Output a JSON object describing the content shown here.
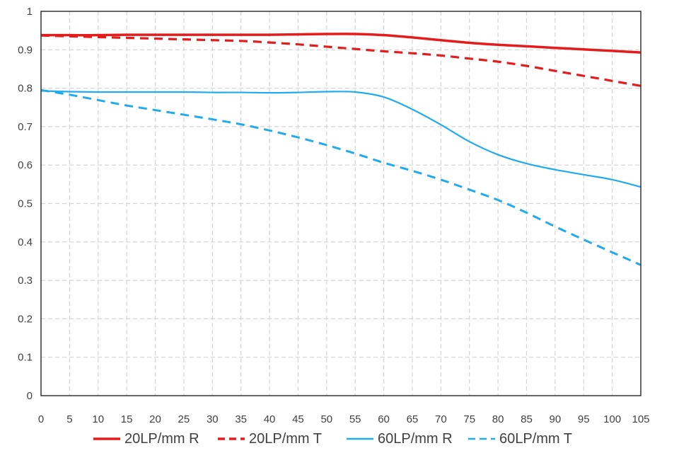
{
  "chart_data": {
    "type": "line",
    "title": "",
    "xlabel": "",
    "ylabel": "",
    "xlim": [
      0,
      105
    ],
    "ylim": [
      0,
      1
    ],
    "x_ticks": [
      0,
      5,
      10,
      15,
      20,
      25,
      30,
      35,
      40,
      45,
      50,
      55,
      60,
      65,
      70,
      75,
      80,
      85,
      90,
      95,
      100,
      105
    ],
    "y_ticks": [
      0,
      0.1,
      0.2,
      0.3,
      0.4,
      0.5,
      0.6,
      0.7,
      0.8,
      0.9,
      1
    ],
    "y_tick_labels": [
      "0",
      "0.1",
      "0.2",
      "0.3",
      "0.4",
      "0.5",
      "0.6",
      "0.7",
      "0.8",
      "0.9",
      "1"
    ],
    "grid": true,
    "legend_position": "bottom",
    "series": [
      {
        "name": "20LP/mm R",
        "color": "#e31c1c",
        "style": "solid",
        "x": [
          0,
          5,
          10,
          15,
          20,
          25,
          30,
          35,
          40,
          45,
          50,
          55,
          60,
          65,
          70,
          75,
          80,
          85,
          90,
          95,
          100,
          105
        ],
        "values": [
          0.938,
          0.938,
          0.938,
          0.939,
          0.939,
          0.939,
          0.939,
          0.939,
          0.939,
          0.94,
          0.941,
          0.941,
          0.938,
          0.932,
          0.925,
          0.918,
          0.913,
          0.909,
          0.905,
          0.901,
          0.897,
          0.893
        ]
      },
      {
        "name": "20LP/mm T",
        "color": "#e31c1c",
        "style": "dashed",
        "x": [
          0,
          5,
          10,
          15,
          20,
          25,
          30,
          35,
          40,
          45,
          50,
          55,
          60,
          65,
          70,
          75,
          80,
          85,
          90,
          95,
          100,
          105
        ],
        "values": [
          0.937,
          0.935,
          0.933,
          0.931,
          0.929,
          0.927,
          0.925,
          0.923,
          0.919,
          0.914,
          0.908,
          0.902,
          0.896,
          0.891,
          0.885,
          0.877,
          0.869,
          0.858,
          0.845,
          0.832,
          0.819,
          0.806
        ]
      },
      {
        "name": "60LP/mm R",
        "color": "#22aaee",
        "style": "solid",
        "x": [
          0,
          5,
          10,
          15,
          20,
          25,
          30,
          35,
          40,
          45,
          50,
          55,
          60,
          65,
          70,
          75,
          80,
          85,
          90,
          95,
          100,
          105
        ],
        "values": [
          0.793,
          0.791,
          0.79,
          0.79,
          0.79,
          0.79,
          0.789,
          0.789,
          0.788,
          0.789,
          0.791,
          0.79,
          0.777,
          0.745,
          0.705,
          0.661,
          0.627,
          0.604,
          0.588,
          0.575,
          0.562,
          0.543
        ]
      },
      {
        "name": "60LP/mm T",
        "color": "#22aaee",
        "style": "dashed",
        "x": [
          0,
          5,
          10,
          15,
          20,
          25,
          30,
          35,
          40,
          45,
          50,
          55,
          60,
          65,
          70,
          75,
          80,
          85,
          90,
          95,
          100,
          105
        ],
        "values": [
          0.795,
          0.783,
          0.769,
          0.755,
          0.743,
          0.731,
          0.719,
          0.706,
          0.69,
          0.672,
          0.652,
          0.63,
          0.606,
          0.585,
          0.562,
          0.536,
          0.509,
          0.476,
          0.44,
          0.406,
          0.373,
          0.34
        ]
      }
    ]
  }
}
